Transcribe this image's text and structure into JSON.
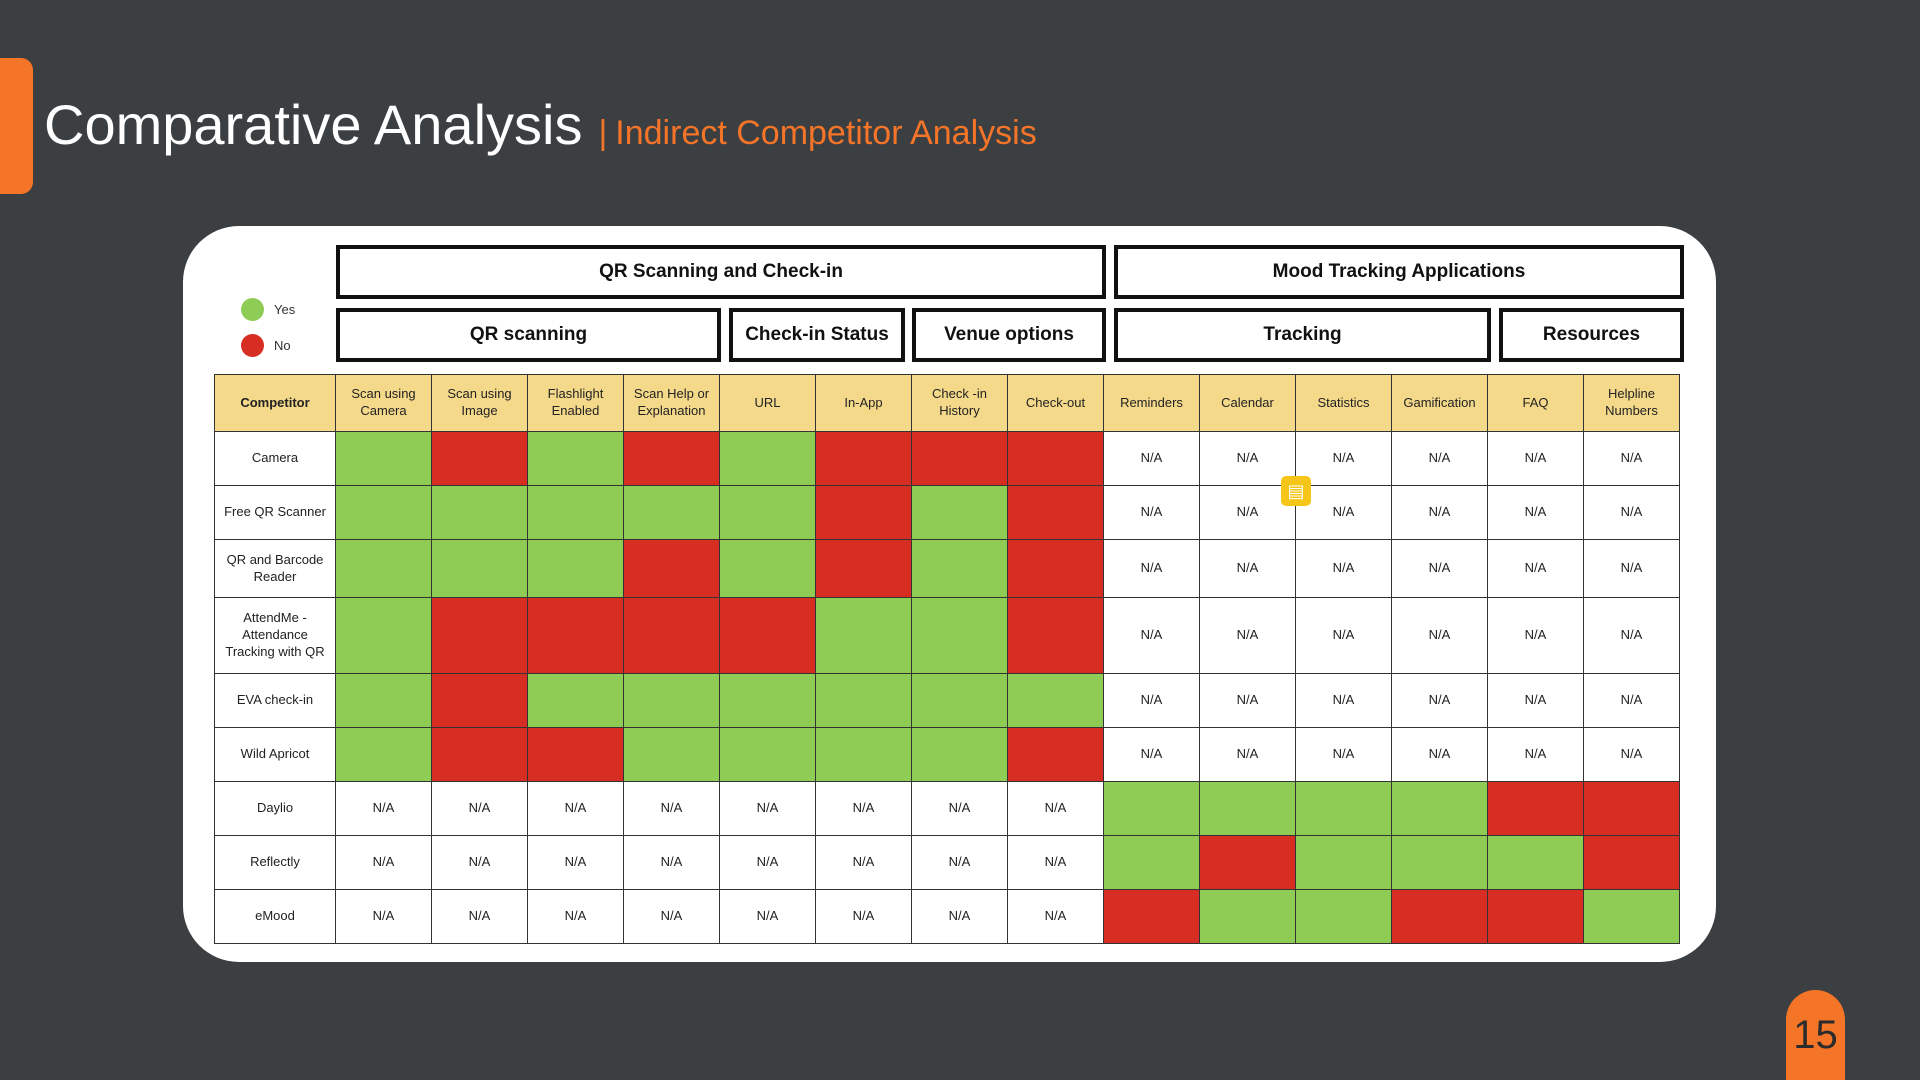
{
  "slide": {
    "title": "Comparative Analysis",
    "separator": "|",
    "subtitle": "Indirect Competitor Analysis",
    "page_number": "15"
  },
  "legend": {
    "yes_label": "Yes",
    "no_label": "No",
    "yes_color": "#8fcc55",
    "no_color": "#d62e22"
  },
  "group_headers": {
    "top": [
      "QR Scanning and Check-in",
      "Mood Tracking Applications"
    ],
    "mid": [
      "QR scanning",
      "Check-in Status",
      "Venue options",
      "Tracking",
      "Resources"
    ]
  },
  "table": {
    "competitor_header": "Competitor",
    "columns": [
      "Scan using Camera",
      "Scan using Image",
      "Flashlight Enabled",
      "Scan Help or Explanation",
      "URL",
      "In-App",
      "Check -in History",
      "Check-out",
      "Reminders",
      "Calendar",
      "Statistics",
      "Gamification",
      "FAQ",
      "Helpline Numbers"
    ],
    "na_label": "N/A",
    "rows": [
      {
        "name": "Camera",
        "cells": [
          "Y",
          "N",
          "Y",
          "N",
          "Y",
          "N",
          "N",
          "N",
          "X",
          "X",
          "X",
          "X",
          "X",
          "X"
        ]
      },
      {
        "name": "Free QR Scanner",
        "cells": [
          "Y",
          "Y",
          "Y",
          "Y",
          "Y",
          "N",
          "Y",
          "N",
          "X",
          "X",
          "X",
          "X",
          "X",
          "X"
        ]
      },
      {
        "name": "QR and Barcode Reader",
        "cells": [
          "Y",
          "Y",
          "Y",
          "N",
          "Y",
          "N",
          "Y",
          "N",
          "X",
          "X",
          "X",
          "X",
          "X",
          "X"
        ]
      },
      {
        "name": "AttendMe - Attendance Tracking with QR",
        "cells": [
          "Y",
          "N",
          "N",
          "N",
          "N",
          "Y",
          "Y",
          "N",
          "X",
          "X",
          "X",
          "X",
          "X",
          "X"
        ]
      },
      {
        "name": "EVA check-in",
        "cells": [
          "Y",
          "N",
          "Y",
          "Y",
          "Y",
          "Y",
          "Y",
          "Y",
          "X",
          "X",
          "X",
          "X",
          "X",
          "X"
        ]
      },
      {
        "name": "Wild Apricot",
        "cells": [
          "Y",
          "N",
          "N",
          "Y",
          "Y",
          "Y",
          "Y",
          "N",
          "X",
          "X",
          "X",
          "X",
          "X",
          "X"
        ]
      },
      {
        "name": "Daylio",
        "cells": [
          "X",
          "X",
          "X",
          "X",
          "X",
          "X",
          "X",
          "X",
          "Y",
          "Y",
          "Y",
          "Y",
          "N",
          "N"
        ]
      },
      {
        "name": "Reflectly",
        "cells": [
          "X",
          "X",
          "X",
          "X",
          "X",
          "X",
          "X",
          "X",
          "Y",
          "N",
          "Y",
          "Y",
          "Y",
          "N"
        ]
      },
      {
        "name": "eMood",
        "cells": [
          "X",
          "X",
          "X",
          "X",
          "X",
          "X",
          "X",
          "X",
          "N",
          "Y",
          "Y",
          "N",
          "N",
          "Y"
        ]
      }
    ]
  }
}
